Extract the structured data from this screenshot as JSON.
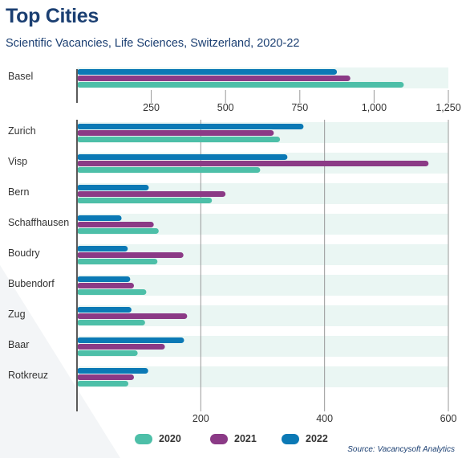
{
  "header": {
    "title": "Top Cities",
    "subtitle": "Scientific Vacancies, Life Sciences, Switzerland, 2020-22"
  },
  "source": "Source: Vacancysoft Analytics",
  "colors": {
    "s2020": "#4dbfa8",
    "s2021": "#8b3a86",
    "s2022": "#0b79b5",
    "band": "#eaf6f3",
    "axis": "#5a5a5a",
    "grid": "#999999"
  },
  "chart_data": [
    {
      "type": "bar",
      "orientation": "horizontal",
      "categories": [
        "Basel"
      ],
      "series": [
        {
          "name": "2020",
          "values": [
            1100
          ]
        },
        {
          "name": "2021",
          "values": [
            920
          ]
        },
        {
          "name": "2022",
          "values": [
            875
          ]
        }
      ],
      "xlim": [
        0,
        1250
      ],
      "xticks": [
        250,
        500,
        750,
        1000,
        1250
      ],
      "xtick_labels": [
        "250",
        "500",
        "750",
        "1,000",
        "1,250"
      ],
      "grid": false
    },
    {
      "type": "bar",
      "orientation": "horizontal",
      "categories": [
        "Zurich",
        "Visp",
        "Bern",
        "Schaffhausen",
        "Boudry",
        "Bubendorf",
        "Zug",
        "Baar",
        "Rotkreuz"
      ],
      "series": [
        {
          "name": "2020",
          "values": [
            328,
            296,
            218,
            132,
            130,
            112,
            110,
            98,
            83
          ]
        },
        {
          "name": "2021",
          "values": [
            318,
            568,
            240,
            124,
            172,
            92,
            178,
            142,
            92
          ]
        },
        {
          "name": "2022",
          "values": [
            366,
            340,
            116,
            72,
            82,
            86,
            88,
            173,
            115
          ]
        }
      ],
      "xlim": [
        0,
        600
      ],
      "xticks": [
        200,
        400,
        600
      ],
      "xtick_labels": [
        "200",
        "400",
        "600"
      ],
      "grid": true,
      "legend": "bottom-center"
    }
  ]
}
